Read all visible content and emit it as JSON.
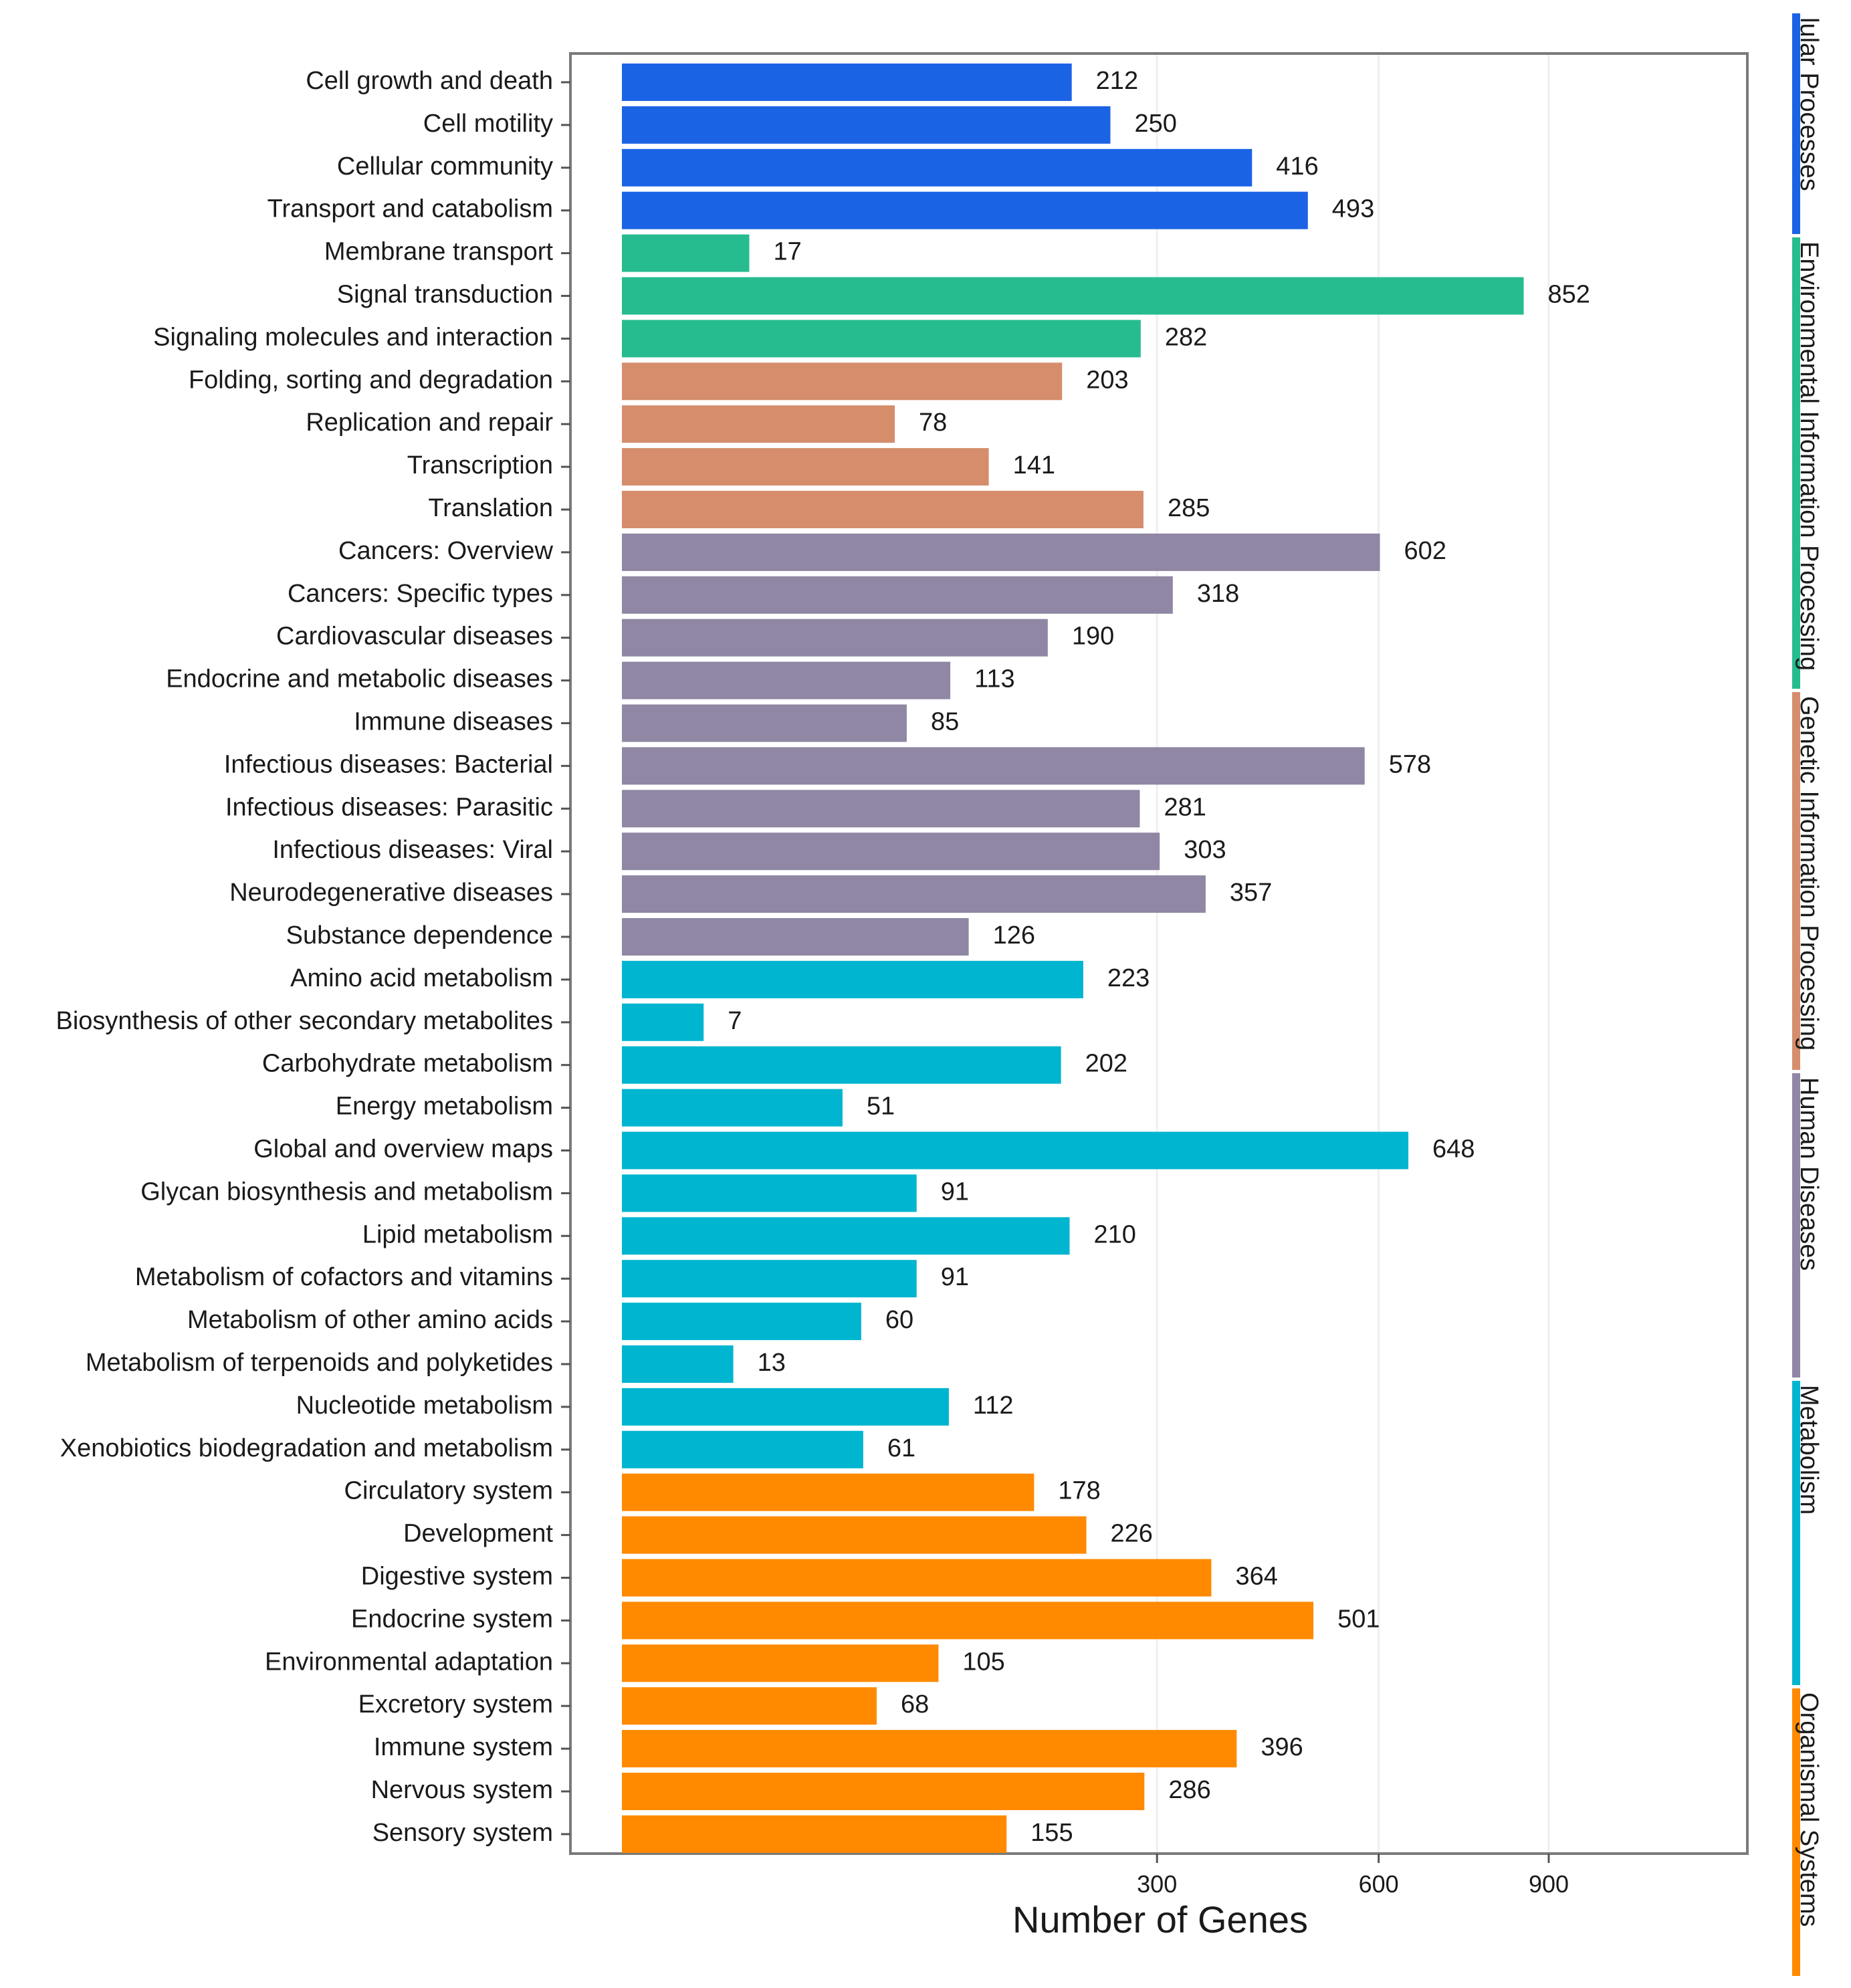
{
  "chart_data": {
    "type": "bar",
    "orientation": "horizontal",
    "xlabel": "Number of Genes",
    "x_ticks": [
      300,
      600,
      900
    ],
    "x_scale": "sqrt",
    "legend_position": "right",
    "groups": [
      {
        "name": "Cellular Processes",
        "visible_label": "lular Processes",
        "color": "#1B63E5",
        "categories": [
          "Cell growth and death",
          "Cell motility",
          "Cellular community",
          "Transport and catabolism"
        ],
        "values": [
          212,
          250,
          416,
          493
        ]
      },
      {
        "name": "Environmental Information Processing",
        "visible_label": "Environmental Information Processing",
        "color": "#27BC8F",
        "categories": [
          "Membrane transport",
          "Signal transduction",
          "Signaling molecules and interaction"
        ],
        "values": [
          17,
          852,
          282
        ]
      },
      {
        "name": "Genetic Information Processing",
        "visible_label": "Genetic Information Processing",
        "color": "#D58D6C",
        "categories": [
          "Folding, sorting and degradation",
          "Replication and repair",
          "Transcription",
          "Translation"
        ],
        "values": [
          203,
          78,
          141,
          285
        ]
      },
      {
        "name": "Human Diseases",
        "visible_label": "Human Diseases",
        "color": "#8F87A3",
        "categories": [
          "Cancers: Overview",
          "Cancers: Specific types",
          "Cardiovascular diseases",
          "Endocrine and metabolic diseases",
          "Immune diseases",
          "Infectious diseases: Bacterial",
          "Infectious diseases: Parasitic",
          "Infectious diseases: Viral",
          "Neurodegenerative diseases",
          "Substance dependence"
        ],
        "values": [
          602,
          318,
          190,
          113,
          85,
          578,
          281,
          303,
          357,
          126
        ]
      },
      {
        "name": "Metabolism",
        "visible_label": "Metabolism",
        "color": "#00B5CF",
        "categories": [
          "Amino acid metabolism",
          "Biosynthesis of other secondary metabolites",
          "Carbohydrate metabolism",
          "Energy metabolism",
          "Global and overview maps",
          "Glycan biosynthesis and metabolism",
          "Lipid metabolism",
          "Metabolism of cofactors and vitamins",
          "Metabolism of other amino acids",
          "Metabolism of terpenoids and polyketides",
          "Nucleotide metabolism",
          "Xenobiotics biodegradation and metabolism"
        ],
        "values": [
          223,
          7,
          202,
          51,
          648,
          91,
          210,
          91,
          60,
          13,
          112,
          61
        ]
      },
      {
        "name": "Organismal Systems",
        "visible_label": "Organismal Systems",
        "color": "#FF8A00",
        "categories": [
          "Circulatory system",
          "Development",
          "Digestive system",
          "Endocrine system",
          "Environmental adaptation",
          "Excretory system",
          "Immune system",
          "Nervous system",
          "Sensory system"
        ],
        "values": [
          178,
          226,
          364,
          501,
          105,
          68,
          396,
          286,
          155
        ]
      }
    ]
  }
}
